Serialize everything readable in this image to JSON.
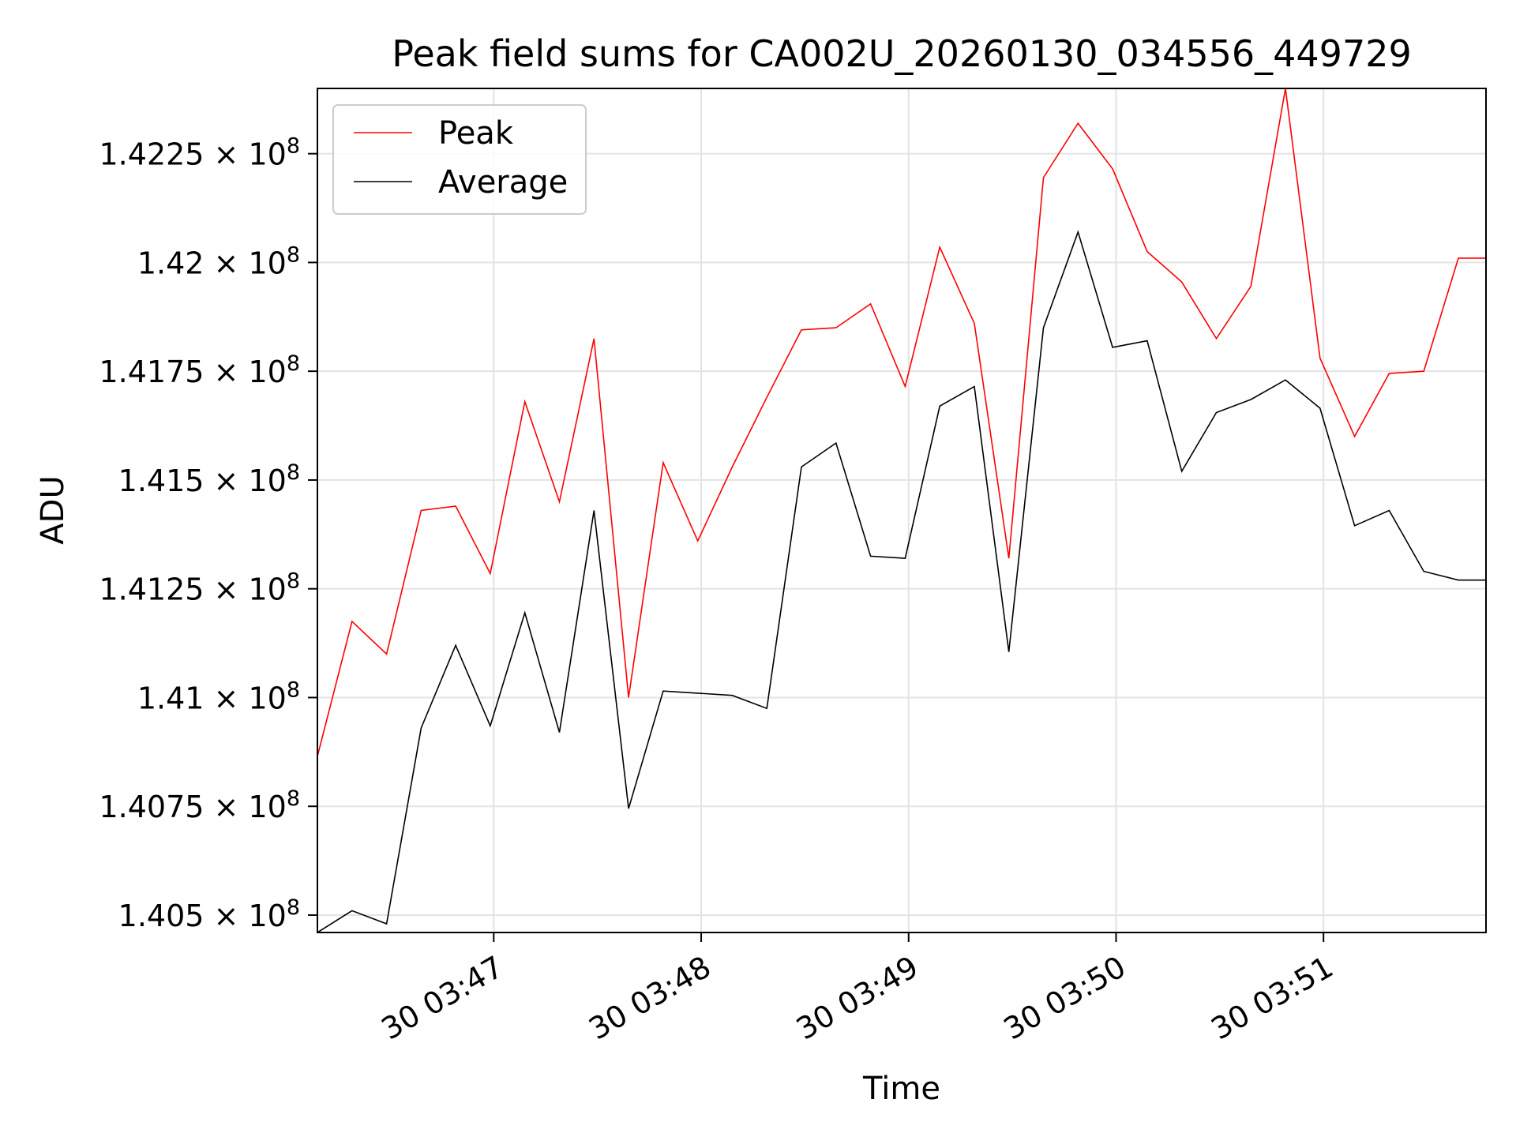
{
  "chart_data": {
    "type": "line",
    "title": "Peak field sums for CA002U_20260130_034556_449729",
    "xlabel": "Time",
    "ylabel": "ADU",
    "grid": true,
    "legend": "top-left",
    "xlim": [
      0,
      33.8
    ],
    "ylim": [
      140460000,
      142400000
    ],
    "x_ticks": [
      {
        "value": 5.1,
        "label": "30 03:47"
      },
      {
        "value": 11.1,
        "label": "30 03:48"
      },
      {
        "value": 17.1,
        "label": "30 03:49"
      },
      {
        "value": 23.1,
        "label": "30 03:50"
      },
      {
        "value": 29.1,
        "label": "30 03:51"
      }
    ],
    "y_ticks": [
      {
        "value": 140500000,
        "mantissa": "1.405"
      },
      {
        "value": 140750000,
        "mantissa": "1.4075"
      },
      {
        "value": 141000000,
        "mantissa": "1.41"
      },
      {
        "value": 141250000,
        "mantissa": "1.4125"
      },
      {
        "value": 141500000,
        "mantissa": "1.415"
      },
      {
        "value": 141750000,
        "mantissa": "1.4175"
      },
      {
        "value": 142000000,
        "mantissa": "1.42"
      },
      {
        "value": 142250000,
        "mantissa": "1.4225"
      }
    ],
    "y_tick_suffix": "× 10",
    "y_tick_exponent": "8",
    "series": [
      {
        "name": "Peak",
        "color": "#ff0000",
        "x": [
          0,
          1,
          2,
          3,
          4,
          5,
          6,
          7,
          8,
          9,
          10,
          11,
          12,
          13,
          14,
          15,
          16,
          17,
          18,
          19,
          20,
          21,
          22,
          23,
          24,
          25,
          26,
          27,
          28,
          29,
          30,
          31,
          32,
          33,
          33.8
        ],
        "values": [
          140865000,
          141175000,
          141100000,
          141430000,
          141440000,
          141285000,
          141680000,
          141450000,
          141825000,
          141000000,
          141540000,
          141360000,
          141530000,
          141690000,
          141845000,
          141850000,
          141905000,
          141715000,
          142035000,
          141860000,
          141320000,
          142195000,
          142320000,
          142215000,
          142025000,
          141955000,
          141825000,
          141945000,
          142400000,
          141780000,
          141600000,
          141745000,
          141750000,
          142010000,
          142010000
        ]
      },
      {
        "name": "Average",
        "color": "#000000",
        "x": [
          0,
          1,
          2,
          3,
          4,
          5,
          6,
          7,
          8,
          9,
          10,
          11,
          12,
          13,
          14,
          15,
          16,
          17,
          18,
          19,
          20,
          21,
          22,
          23,
          24,
          25,
          26,
          27,
          28,
          29,
          30,
          31,
          32,
          33,
          33.8
        ],
        "values": [
          140460000,
          140510000,
          140480000,
          140930000,
          141120000,
          140935000,
          141195000,
          140920000,
          141430000,
          140745000,
          141015000,
          141010000,
          141005000,
          140975000,
          141530000,
          141585000,
          141325000,
          141320000,
          141670000,
          141715000,
          141105000,
          141850000,
          142070000,
          141805000,
          141820000,
          141520000,
          141655000,
          141685000,
          141730000,
          141665000,
          141395000,
          141430000,
          141290000,
          141270000,
          141270000
        ]
      }
    ]
  }
}
